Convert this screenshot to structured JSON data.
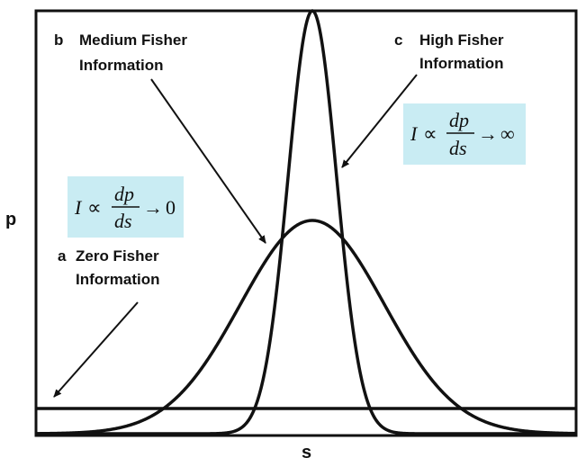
{
  "axes": {
    "ylabel": "p",
    "xlabel": "s"
  },
  "annotations": {
    "a": {
      "letter": "a",
      "line1": "Zero Fisher",
      "line2": "Information"
    },
    "b": {
      "letter": "b",
      "line1": "Medium Fisher",
      "line2": "Information"
    },
    "c": {
      "letter": "c",
      "line1": "High Fisher",
      "line2": "Information"
    }
  },
  "formulas": {
    "zero": {
      "lhs": "I",
      "prop": "∝",
      "num": "dp",
      "den": "ds",
      "arrow": "→",
      "limit": "0"
    },
    "high": {
      "lhs": "I",
      "prop": "∝",
      "num": "dp",
      "den": "ds",
      "arrow": "→",
      "limit": "∞"
    }
  },
  "colors": {
    "formula_bg": "#c9ecf3",
    "line": "#111111"
  }
}
